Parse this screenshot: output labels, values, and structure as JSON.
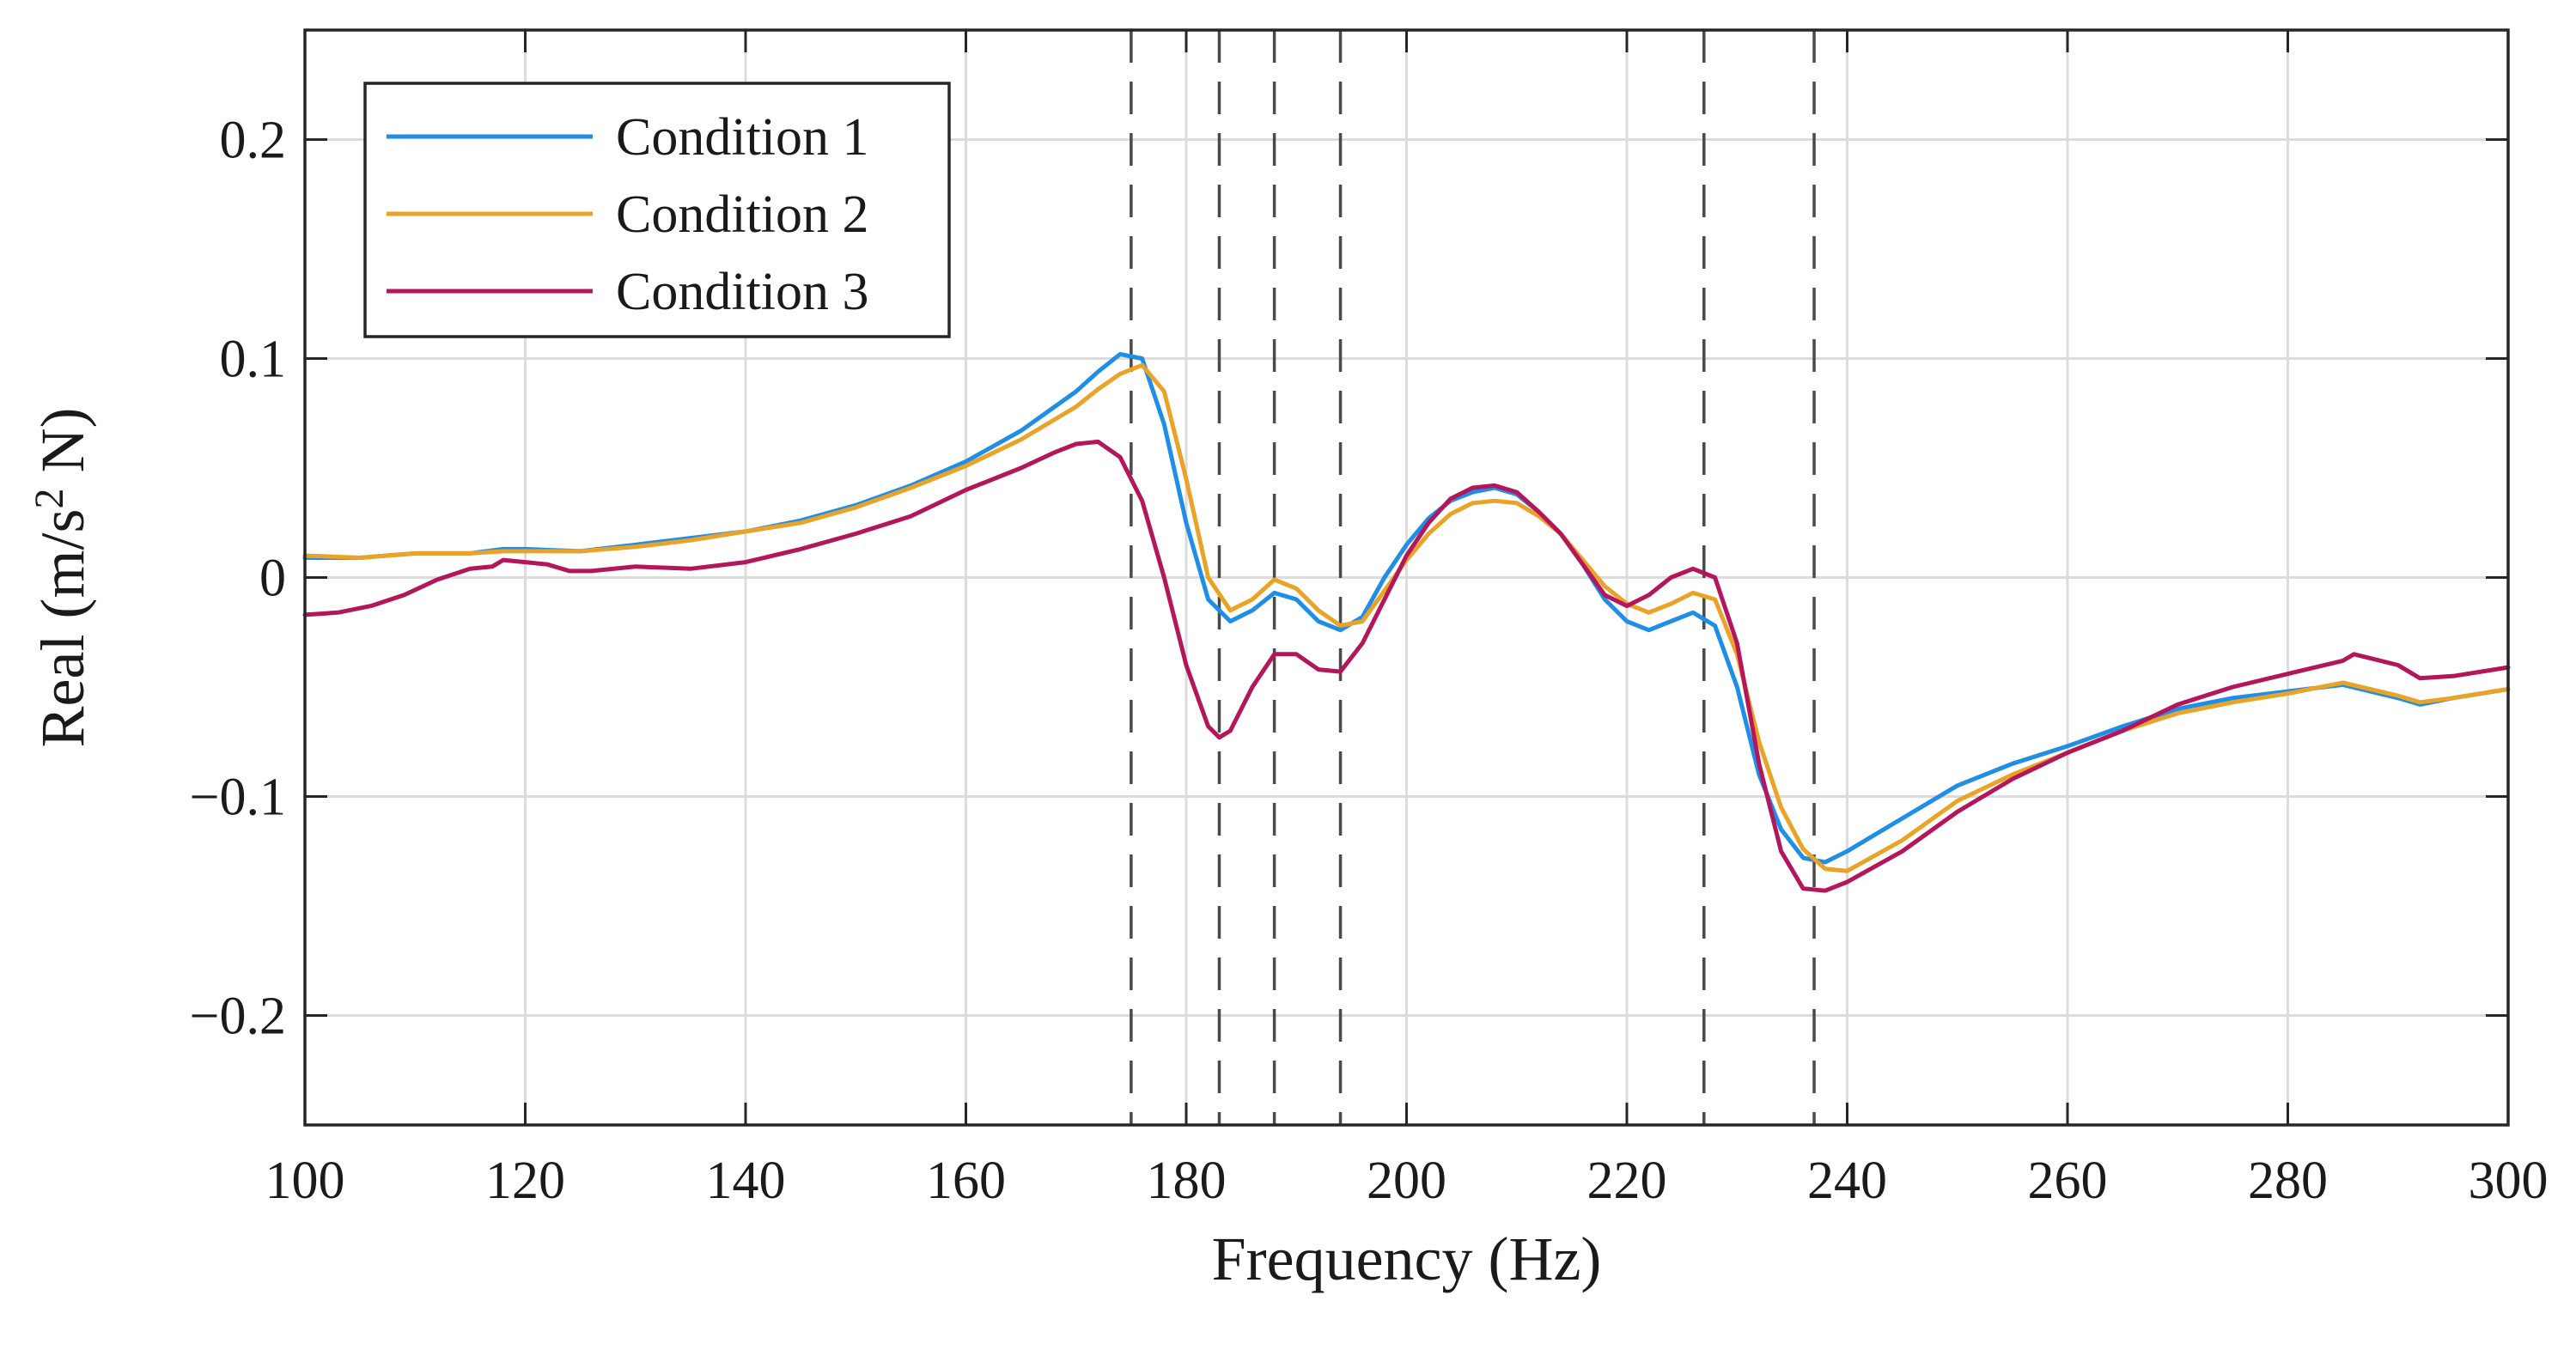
{
  "chart_data": {
    "type": "line",
    "title": "",
    "xlabel": "Frequency (Hz)",
    "ylabel": {
      "base": "Real (m/s",
      "sup": "2",
      "tail": " N)"
    },
    "xlim": [
      100,
      300
    ],
    "ylim": [
      -0.25,
      0.25
    ],
    "xticks": [
      100,
      120,
      140,
      160,
      180,
      200,
      220,
      240,
      260,
      280,
      300
    ],
    "xtick_labels": [
      "100",
      "120",
      "140",
      "160",
      "180",
      "200",
      "220",
      "240",
      "260",
      "280",
      "300"
    ],
    "yticks": [
      -0.2,
      -0.1,
      0,
      0.1,
      0.2
    ],
    "ytick_labels": [
      "−0.2",
      "−0.1",
      "0",
      "0.1",
      "0.2"
    ],
    "grid": true,
    "legend_position": "top-left",
    "vlines": [
      175,
      183,
      188,
      194,
      227,
      237
    ],
    "series": [
      {
        "name": "Condition 1",
        "color": "#1f8ee6",
        "x": [
          100,
          105,
          110,
          115,
          118,
          120,
          125,
          130,
          135,
          140,
          145,
          150,
          155,
          160,
          165,
          170,
          172,
          174,
          176,
          178,
          180,
          182,
          184,
          186,
          188,
          190,
          192,
          194,
          196,
          198,
          200,
          202,
          204,
          206,
          208,
          210,
          212,
          214,
          216,
          218,
          220,
          222,
          224,
          226,
          228,
          230,
          232,
          234,
          236,
          238,
          240,
          245,
          250,
          255,
          260,
          265,
          270,
          275,
          280,
          285,
          290,
          292,
          295,
          300
        ],
        "y": [
          0.009,
          0.009,
          0.011,
          0.011,
          0.013,
          0.013,
          0.012,
          0.015,
          0.018,
          0.021,
          0.026,
          0.033,
          0.042,
          0.053,
          0.067,
          0.085,
          0.094,
          0.102,
          0.1,
          0.07,
          0.025,
          -0.01,
          -0.02,
          -0.015,
          -0.007,
          -0.01,
          -0.02,
          -0.024,
          -0.018,
          0.0,
          0.015,
          0.027,
          0.035,
          0.039,
          0.041,
          0.038,
          0.03,
          0.02,
          0.006,
          -0.01,
          -0.02,
          -0.024,
          -0.02,
          -0.016,
          -0.022,
          -0.05,
          -0.09,
          -0.115,
          -0.128,
          -0.13,
          -0.125,
          -0.11,
          -0.095,
          -0.085,
          -0.077,
          -0.068,
          -0.06,
          -0.055,
          -0.052,
          -0.049,
          -0.055,
          -0.058,
          -0.055,
          -0.051
        ]
      },
      {
        "name": "Condition 2",
        "color": "#eaa327",
        "x": [
          100,
          105,
          110,
          115,
          118,
          120,
          125,
          130,
          135,
          140,
          145,
          150,
          155,
          160,
          165,
          170,
          172,
          174,
          176,
          178,
          180,
          182,
          184,
          186,
          188,
          190,
          192,
          194,
          196,
          198,
          200,
          202,
          204,
          206,
          208,
          210,
          212,
          214,
          216,
          218,
          220,
          222,
          224,
          226,
          228,
          230,
          232,
          234,
          236,
          238,
          240,
          245,
          250,
          255,
          260,
          265,
          270,
          275,
          280,
          285,
          290,
          292,
          295,
          300
        ],
        "y": [
          0.01,
          0.009,
          0.011,
          0.011,
          0.012,
          0.012,
          0.012,
          0.014,
          0.017,
          0.021,
          0.025,
          0.032,
          0.041,
          0.051,
          0.063,
          0.078,
          0.086,
          0.093,
          0.097,
          0.085,
          0.045,
          0.0,
          -0.015,
          -0.01,
          -0.001,
          -0.005,
          -0.015,
          -0.022,
          -0.02,
          -0.006,
          0.008,
          0.02,
          0.029,
          0.034,
          0.035,
          0.034,
          0.028,
          0.02,
          0.008,
          -0.004,
          -0.012,
          -0.016,
          -0.012,
          -0.007,
          -0.01,
          -0.035,
          -0.075,
          -0.105,
          -0.124,
          -0.133,
          -0.134,
          -0.12,
          -0.102,
          -0.09,
          -0.08,
          -0.07,
          -0.062,
          -0.057,
          -0.053,
          -0.048,
          -0.054,
          -0.057,
          -0.055,
          -0.051
        ]
      },
      {
        "name": "Condition 3",
        "color": "#b3165a",
        "x": [
          100,
          103,
          106,
          109,
          112,
          115,
          117,
          118,
          120,
          122,
          124,
          126,
          130,
          135,
          140,
          145,
          150,
          155,
          160,
          165,
          168,
          170,
          172,
          174,
          176,
          178,
          180,
          182,
          183,
          184,
          186,
          188,
          190,
          192,
          194,
          196,
          198,
          200,
          202,
          204,
          206,
          208,
          210,
          212,
          214,
          216,
          218,
          220,
          222,
          224,
          226,
          228,
          230,
          232,
          234,
          236,
          238,
          240,
          245,
          250,
          255,
          260,
          265,
          270,
          275,
          280,
          285,
          286,
          290,
          292,
          295,
          300
        ],
        "y": [
          -0.017,
          -0.016,
          -0.013,
          -0.008,
          -0.001,
          0.004,
          0.005,
          0.008,
          0.007,
          0.006,
          0.003,
          0.003,
          0.005,
          0.004,
          0.007,
          0.013,
          0.02,
          0.028,
          0.04,
          0.05,
          0.057,
          0.061,
          0.062,
          0.055,
          0.035,
          0.0,
          -0.04,
          -0.068,
          -0.073,
          -0.07,
          -0.05,
          -0.035,
          -0.035,
          -0.042,
          -0.043,
          -0.03,
          -0.01,
          0.01,
          0.025,
          0.036,
          0.041,
          0.042,
          0.039,
          0.03,
          0.02,
          0.006,
          -0.008,
          -0.013,
          -0.008,
          0.0,
          0.004,
          0.0,
          -0.03,
          -0.085,
          -0.125,
          -0.142,
          -0.143,
          -0.139,
          -0.125,
          -0.107,
          -0.092,
          -0.08,
          -0.07,
          -0.058,
          -0.05,
          -0.044,
          -0.038,
          -0.035,
          -0.04,
          -0.046,
          -0.045,
          -0.041
        ]
      }
    ]
  }
}
